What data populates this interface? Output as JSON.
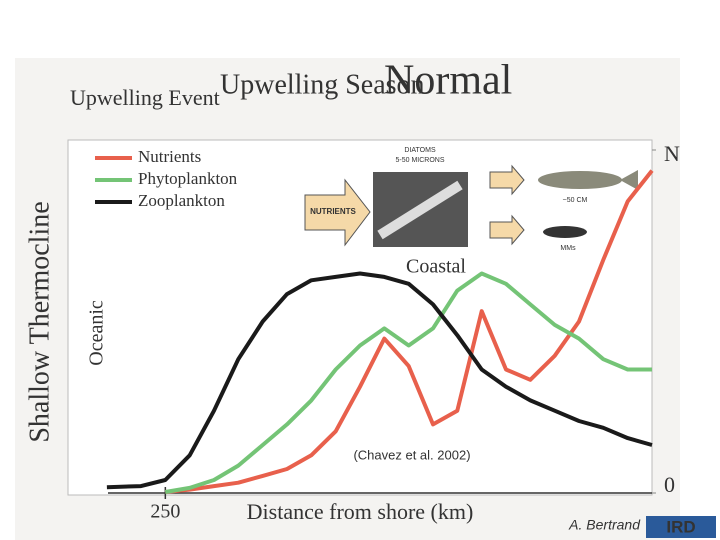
{
  "chart_data": {
    "type": "line",
    "title": "Normal",
    "headings": [
      "Upwelling Event",
      "Upwelling Season"
    ],
    "y_label": "Shallow Thermocline",
    "x_label": "Distance from shore (km)",
    "zones": [
      "Oceanic",
      "Coastal"
    ],
    "source": "(Chavez et al. 2002)",
    "author": "A. Bertrand",
    "logo": "IRD",
    "inset": {
      "arrow": "NUTRIENTS",
      "photo": [
        "DIATOMS",
        "5-50 MICRONS"
      ],
      "fish": "~50 CM",
      "krill": "MMs"
    },
    "x": [
      280,
      262.5,
      250,
      237.5,
      225,
      212.5,
      200,
      187.5,
      175,
      162.5,
      150,
      137.5,
      125,
      112.5,
      100,
      87.5,
      75,
      62.5,
      50,
      37.5,
      25,
      12.5,
      0
    ],
    "xlim": [
      300,
      0
    ],
    "xticks": [
      250
    ],
    "ylim": [
      0,
      100
    ],
    "yticks": [
      0,
      {
        "value": 100,
        "label": "N"
      }
    ],
    "legend": "top-left",
    "series": [
      {
        "name": "Nutrients",
        "color": "#e8604c",
        "values": [
          null,
          null,
          0.3,
          1,
          2,
          3,
          5,
          7,
          11,
          18,
          31,
          45,
          37,
          20,
          24,
          53,
          36,
          33,
          40,
          50,
          68,
          85,
          94
        ]
      },
      {
        "name": "Phytoplankton",
        "color": "#74c476",
        "values": [
          null,
          null,
          0.3,
          1.5,
          3.8,
          8,
          14,
          20,
          27,
          36,
          43,
          48,
          43,
          48,
          59,
          64,
          61,
          55,
          49,
          45,
          39,
          36,
          36
        ]
      },
      {
        "name": "Zooplankton",
        "color": "#1a1a1a",
        "values": [
          1.7,
          2,
          3.8,
          11,
          24,
          39,
          50,
          58,
          62,
          63,
          64,
          63,
          61,
          55,
          46,
          36,
          31,
          27,
          24,
          21,
          19,
          16,
          14
        ]
      }
    ]
  }
}
